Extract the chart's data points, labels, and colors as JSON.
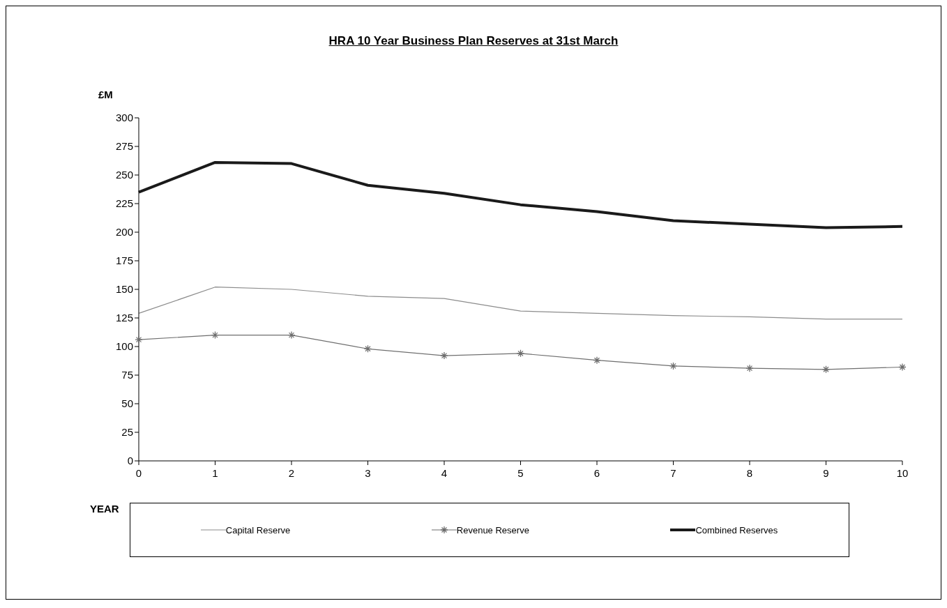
{
  "chart_data": {
    "type": "line",
    "title": "HRA 10 Year Business Plan Reserves at 31st March",
    "xlabel": "YEAR",
    "ylabel": "£M",
    "categories": [
      "0",
      "1",
      "2",
      "3",
      "4",
      "5",
      "6",
      "7",
      "8",
      "9",
      "10"
    ],
    "series": [
      {
        "name": "Capital Reserve",
        "color": "#8c8c8c",
        "marker": "none",
        "values": [
          129,
          152,
          150,
          144,
          142,
          131,
          129,
          127,
          126,
          124,
          124
        ]
      },
      {
        "name": "Revenue Reserve",
        "color": "#6e6e6e",
        "marker": "cross",
        "values": [
          106,
          110,
          110,
          98,
          92,
          94,
          88,
          83,
          81,
          80,
          82
        ]
      },
      {
        "name": "Combined Reserves",
        "color": "#1a1a1a",
        "marker": "none",
        "values": [
          235,
          261,
          260,
          241,
          234,
          224,
          218,
          210,
          207,
          204,
          205
        ]
      }
    ],
    "ylim": [
      0,
      300
    ],
    "yticks": [
      0,
      25,
      50,
      75,
      100,
      125,
      150,
      175,
      200,
      225,
      250,
      275,
      300
    ],
    "grid": false,
    "legend": "bottom",
    "line_style": "solid"
  }
}
